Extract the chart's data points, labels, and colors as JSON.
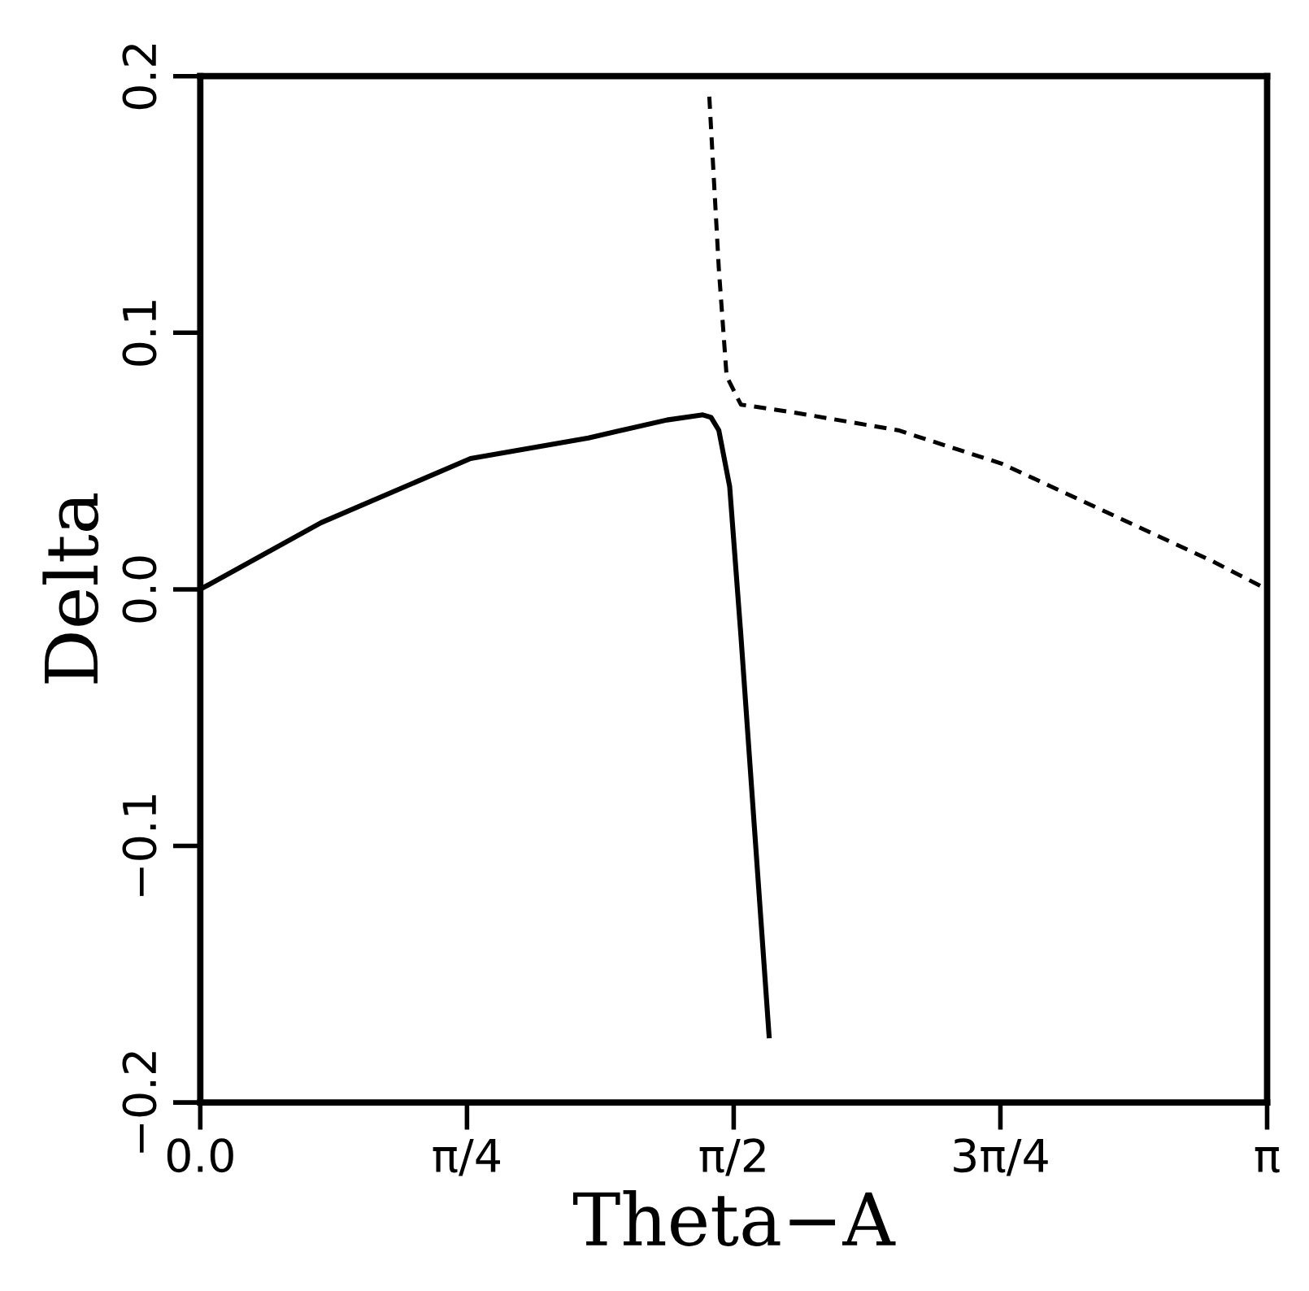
{
  "chart_data": {
    "type": "line",
    "xlabel": "Theta−A",
    "ylabel": "Delta",
    "xlim": [
      0,
      3.1416
    ],
    "ylim": [
      -0.2,
      0.2
    ],
    "xticks": [
      {
        "value": 0,
        "label": "0.0"
      },
      {
        "value": 0.7854,
        "label": "π/4"
      },
      {
        "value": 1.5708,
        "label": "π/2"
      },
      {
        "value": 2.3562,
        "label": "3π/4"
      },
      {
        "value": 3.1416,
        "label": "π"
      }
    ],
    "yticks": [
      {
        "value": -0.2,
        "label": "−0.2"
      },
      {
        "value": -0.1,
        "label": "−0.1"
      },
      {
        "value": 0,
        "label": "0.0"
      },
      {
        "value": 0.1,
        "label": "0.1"
      },
      {
        "value": 0.2,
        "label": "0.2"
      }
    ],
    "grid": false,
    "legend": false,
    "series": [
      {
        "color": "#000000",
        "line_style": "solid",
        "x": [
          0,
          0.356,
          0.796,
          1.143,
          1.374,
          1.48,
          1.504,
          1.527,
          1.559,
          1.592,
          1.675
        ],
        "values": [
          0,
          0.026,
          0.051,
          0.059,
          0.066,
          0.068,
          0.067,
          0.062,
          0.04,
          -0.018,
          -0.174
        ]
      },
      {
        "color": "#000000",
        "line_style": "dashed",
        "x": [
          1.499,
          1.527,
          1.55,
          1.592,
          1.745,
          2.055,
          2.36,
          2.67,
          2.98,
          3.1416
        ],
        "values": [
          0.192,
          0.125,
          0.083,
          0.072,
          0.069,
          0.062,
          0.049,
          0.03,
          0.011,
          0
        ]
      }
    ]
  }
}
